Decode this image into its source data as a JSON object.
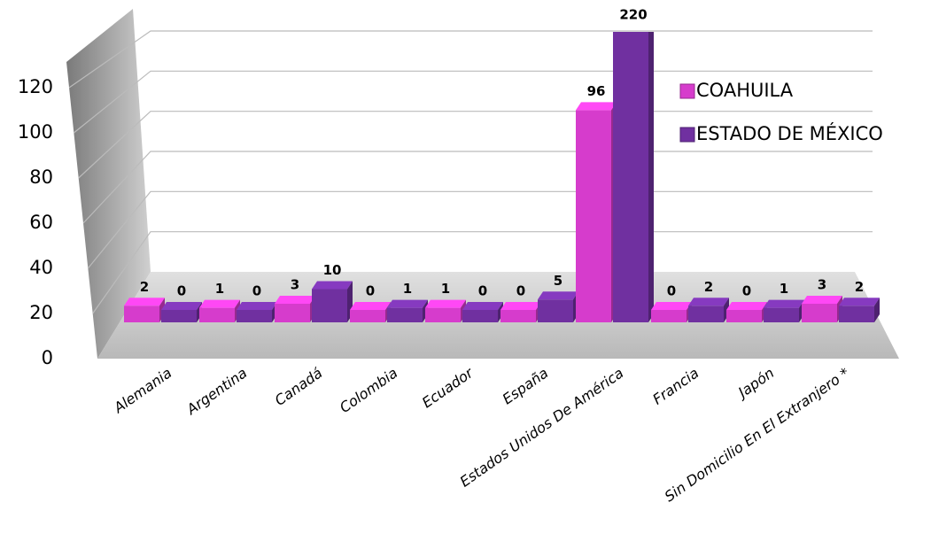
{
  "chart_data": {
    "type": "bar3d",
    "categories": [
      "Alemania",
      "Argentina",
      "Canadá",
      "Colombia",
      "Ecuador",
      "España",
      "Estados Unidos De América",
      "Francia",
      "Japón",
      "Sin Domicilio En El Extranjero *"
    ],
    "series": [
      {
        "name": "COAHUILA",
        "color": "#d63ccc",
        "values": [
          2,
          1,
          3,
          0,
          1,
          0,
          96,
          0,
          0,
          3
        ]
      },
      {
        "name": "ESTADO DE MÉXICO",
        "color": "#7030a0",
        "values": [
          0,
          0,
          10,
          1,
          0,
          5,
          220,
          2,
          1,
          2
        ]
      }
    ],
    "ylim": [
      0,
      120
    ],
    "yticks": [
      0,
      20,
      40,
      60,
      80,
      100,
      120
    ],
    "grid": true,
    "legend": "right"
  }
}
